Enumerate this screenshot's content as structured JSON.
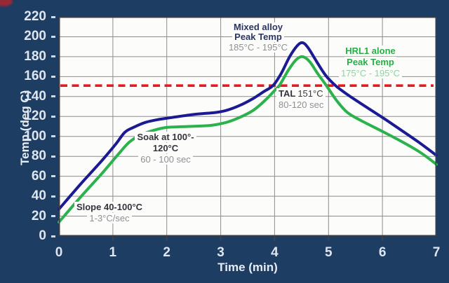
{
  "colors": {
    "background": "#1e3d62",
    "plot_background": "#fcfcfa",
    "grid": "#8c8c8c",
    "plot_border": "#3f3f47",
    "tick_text": "#dde6f1",
    "mixed_curve": "#1b1a94",
    "hrl1_curve": "#2bb24c",
    "tal_line": "#e9191f"
  },
  "chart_data": {
    "type": "line",
    "xlabel": "Time (min)",
    "ylabel": "Temp (deg C)",
    "xlim": [
      0,
      7
    ],
    "ylim": [
      0,
      220
    ],
    "x_ticks": [
      0,
      1,
      2,
      3,
      4,
      5,
      6,
      7
    ],
    "y_ticks": [
      0,
      20,
      40,
      60,
      80,
      100,
      120,
      140,
      160,
      180,
      200,
      220
    ],
    "grid": true,
    "legend": "none",
    "threshold_line": {
      "label": "TAL",
      "value_c": 151,
      "color": "#e9191f",
      "style": "dashed"
    },
    "series": [
      {
        "name": "Mixed alloy",
        "color": "#1b1a94",
        "peak_temp_range": "185°C - 195°C",
        "points": [
          [
            0,
            27
          ],
          [
            0.4,
            52
          ],
          [
            0.8,
            76
          ],
          [
            1.05,
            92
          ],
          [
            1.22,
            104
          ],
          [
            1.38,
            109
          ],
          [
            1.6,
            114
          ],
          [
            1.85,
            117
          ],
          [
            2.1,
            119
          ],
          [
            2.5,
            122
          ],
          [
            2.9,
            124
          ],
          [
            3.1,
            126
          ],
          [
            3.35,
            131
          ],
          [
            3.6,
            138
          ],
          [
            3.8,
            145
          ],
          [
            3.97,
            151
          ],
          [
            4.12,
            163
          ],
          [
            4.28,
            180
          ],
          [
            4.42,
            191
          ],
          [
            4.52,
            194
          ],
          [
            4.62,
            189
          ],
          [
            4.78,
            175
          ],
          [
            4.95,
            161
          ],
          [
            5.13,
            151
          ],
          [
            5.35,
            142
          ],
          [
            5.6,
            133
          ],
          [
            6.0,
            119
          ],
          [
            6.3,
            108
          ],
          [
            6.65,
            95
          ],
          [
            7,
            81
          ]
        ]
      },
      {
        "name": "HRL1 alone",
        "color": "#2bb24c",
        "peak_temp_range": "175°C - 195°C",
        "points": [
          [
            0,
            14
          ],
          [
            0.4,
            39
          ],
          [
            0.8,
            63
          ],
          [
            1.1,
            82
          ],
          [
            1.3,
            94
          ],
          [
            1.5,
            101
          ],
          [
            1.75,
            106
          ],
          [
            2.0,
            109
          ],
          [
            2.4,
            110
          ],
          [
            2.8,
            111
          ],
          [
            3.1,
            114
          ],
          [
            3.35,
            119
          ],
          [
            3.6,
            126
          ],
          [
            3.82,
            136
          ],
          [
            4.0,
            146
          ],
          [
            4.1,
            152
          ],
          [
            4.25,
            166
          ],
          [
            4.4,
            177
          ],
          [
            4.52,
            180
          ],
          [
            4.65,
            175
          ],
          [
            4.8,
            163
          ],
          [
            4.96,
            151
          ],
          [
            5.15,
            136
          ],
          [
            5.35,
            124
          ],
          [
            5.6,
            116
          ],
          [
            6.0,
            105
          ],
          [
            6.35,
            95
          ],
          [
            6.7,
            84
          ],
          [
            7,
            72
          ]
        ]
      }
    ]
  },
  "annotations": {
    "slope": {
      "line1": "Slope 40-100°C",
      "line2": "1-3°C/sec"
    },
    "soak": {
      "line1": "Soak at 100°-",
      "line2": "120°C",
      "line3": "60 - 100 sec"
    },
    "mixed_peak": {
      "line1": "Mixed alloy",
      "line2": "Peak Temp",
      "line3": "185°C - 195°C"
    },
    "tal": {
      "label": "TAL",
      "value": "151°C",
      "duration": "80-120 sec"
    },
    "hrl1_peak": {
      "line1": "HRL1 alone",
      "line2": "Peak Temp",
      "line3": "175°C - 195°C"
    }
  }
}
